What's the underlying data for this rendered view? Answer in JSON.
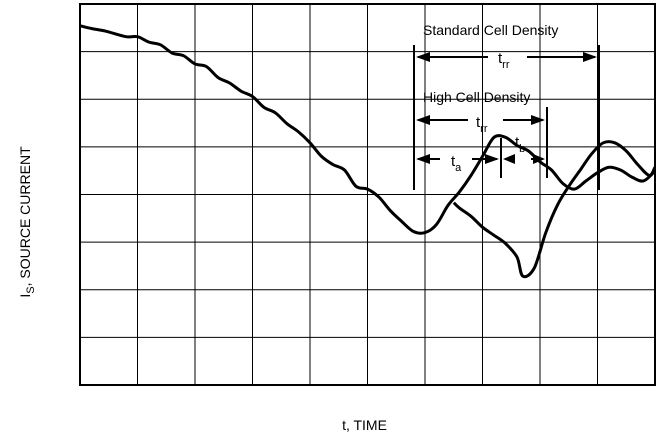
{
  "chart_data": {
    "type": "line",
    "ylabel": {
      "main": "I",
      "sub": "S",
      "rest": ", SOURCE CURRENT"
    },
    "xlabel": "t, TIME",
    "grid": true,
    "annotations": {
      "standard_cell_density": "Standard Cell Density",
      "high_cell_density": "High Cell Density",
      "trr_standard": {
        "main": "t",
        "sub": "rr"
      },
      "trr_high": {
        "main": "t",
        "sub": "rr"
      },
      "ta": {
        "main": "t",
        "sub": "a"
      },
      "tb": {
        "main": "t",
        "sub": "b"
      }
    },
    "series": [
      {
        "x": [
          0.0,
          0.2,
          0.45,
          0.8,
          1.0,
          1.2,
          1.4,
          1.6,
          1.8,
          2.0,
          2.2,
          2.4,
          2.6,
          2.8,
          3.0,
          3.2,
          3.4,
          3.6,
          3.8,
          4.0,
          4.2,
          4.4,
          4.6,
          4.8,
          5.0,
          5.2,
          5.4,
          5.6,
          5.8,
          6.0,
          6.2,
          6.4,
          6.6,
          6.8,
          7.0,
          7.2,
          7.4,
          7.6,
          7.8,
          8.0,
          8.2,
          8.4,
          8.6,
          8.8,
          9.0,
          9.2,
          9.4,
          9.6,
          9.8,
          10.0
        ],
        "values": [
          6.6,
          6.55,
          6.5,
          6.4,
          6.4,
          6.3,
          6.25,
          6.1,
          6.05,
          5.9,
          5.85,
          5.65,
          5.55,
          5.4,
          5.3,
          5.1,
          5.0,
          4.8,
          4.65,
          4.45,
          4.2,
          4.05,
          3.95,
          3.65,
          3.6,
          3.45,
          3.2,
          3.0,
          2.82,
          2.8,
          2.95,
          3.3,
          3.55,
          3.85,
          4.2,
          4.55,
          4.55,
          4.4,
          4.3,
          4.1,
          3.95,
          3.7,
          3.6,
          3.75,
          3.9,
          4.0,
          3.95,
          3.82,
          3.75,
          3.93
        ]
      },
      {
        "x": [
          6.5,
          6.6,
          6.8,
          7.0,
          7.2,
          7.4,
          7.6,
          7.7,
          7.9,
          8.1,
          8.3,
          8.5,
          8.7,
          8.9,
          9.1,
          9.3,
          9.5,
          9.7,
          9.9,
          10.0
        ],
        "values": [
          3.35,
          3.25,
          3.1,
          2.9,
          2.75,
          2.6,
          2.35,
          2.0,
          2.15,
          2.8,
          3.3,
          3.65,
          3.95,
          4.25,
          4.45,
          4.45,
          4.3,
          4.05,
          3.85,
          4.0
        ]
      }
    ],
    "xlim": [
      0,
      10
    ],
    "ylim": [
      0,
      7
    ]
  }
}
